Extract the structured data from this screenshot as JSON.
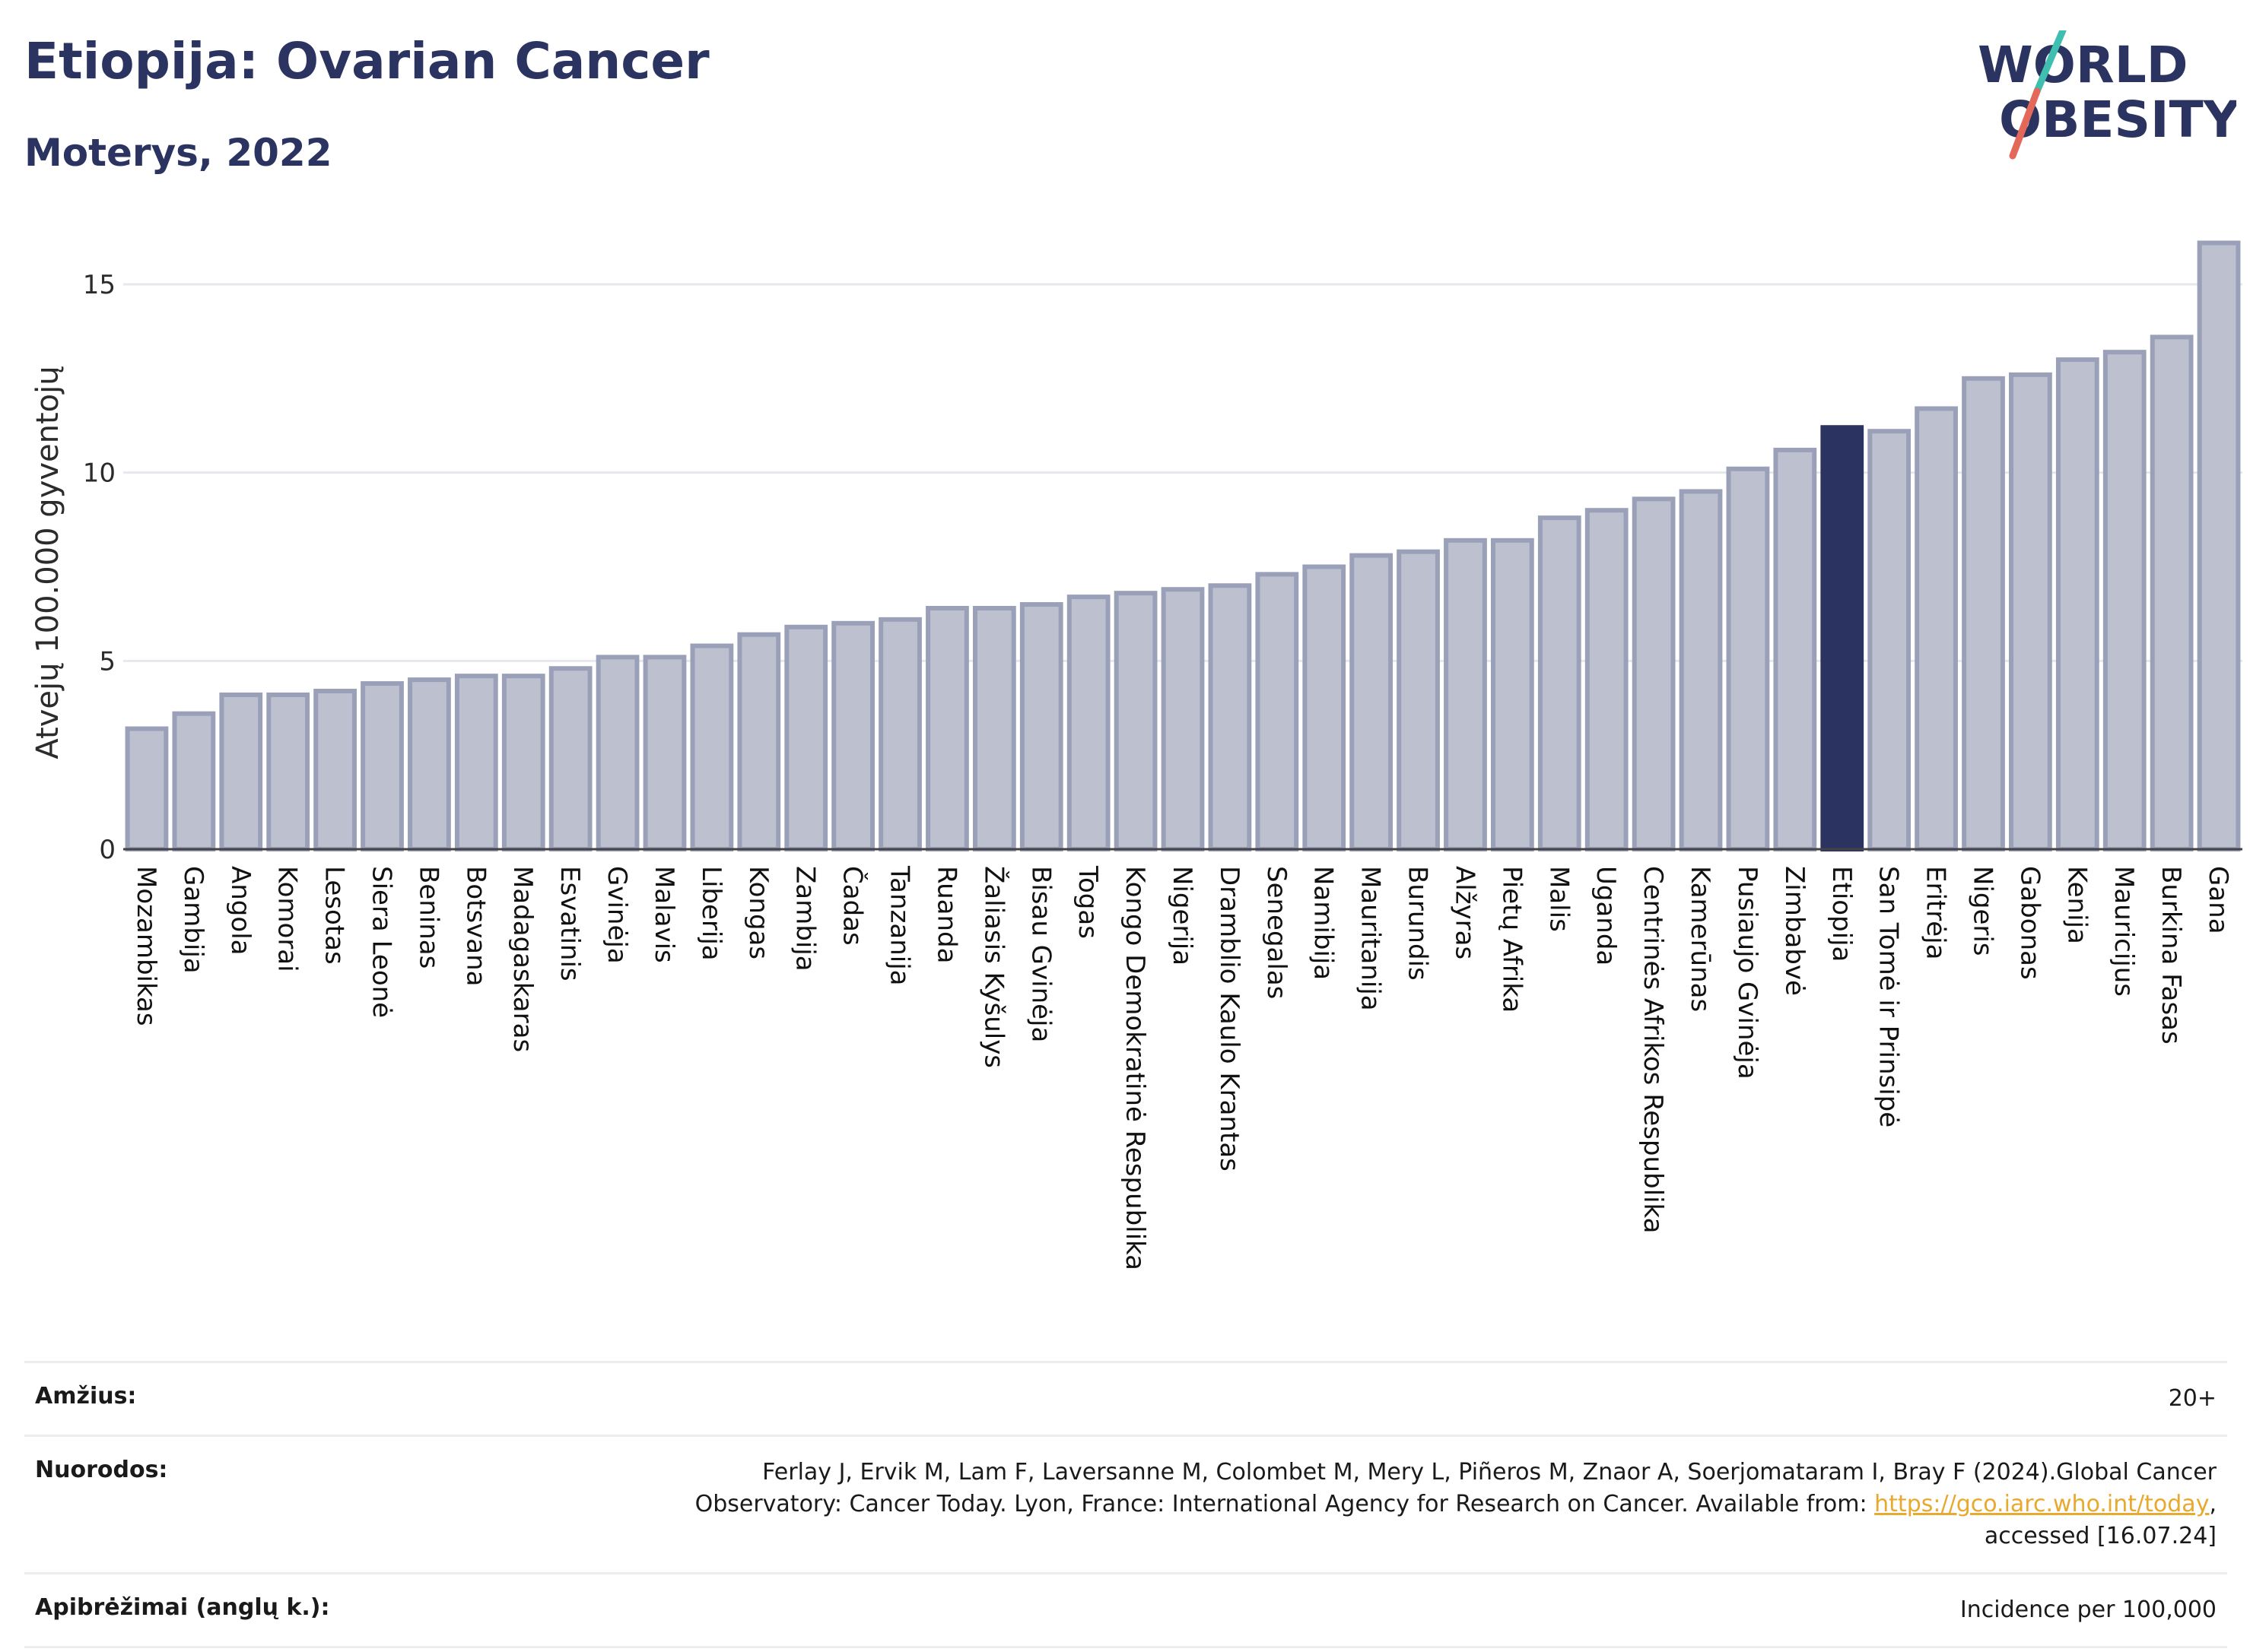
{
  "header": {
    "title": "Etiopija: Ovarian Cancer",
    "subtitle": "Moterys, 2022",
    "logo_text_line1": "WORLD",
    "logo_text_line2": "OBESITY"
  },
  "colors": {
    "bar": "#bcc0cf",
    "bar_stroke": "#9aa0b8",
    "highlight": "#2b3461",
    "text": "#2b3461",
    "link": "#e8a92e",
    "logo_teal": "#3fbfb0",
    "logo_red": "#e3685a"
  },
  "chart_data": {
    "type": "bar",
    "ylabel": "Atvejų 100.000 gyventojų",
    "ylim": [
      0,
      16.5
    ],
    "yticks": [
      0,
      5,
      10,
      15
    ],
    "grid": true,
    "highlight": "Etiopija",
    "categories": [
      "Mozambikas",
      "Gambija",
      "Angola",
      "Komorai",
      "Lesotas",
      "Siera Leonė",
      "Beninas",
      "Botsvana",
      "Madagaskaras",
      "Esvatinis",
      "Gvinėja",
      "Malavis",
      "Liberija",
      "Kongas",
      "Zambija",
      "Čadas",
      "Tanzanija",
      "Ruanda",
      "Žaliasis Kyšulys",
      "Bisau Gvinėja",
      "Togas",
      "Kongo Demokratinė Respublika",
      "Nigerija",
      "Dramblio Kaulo Krantas",
      "Senegalas",
      "Namibija",
      "Mauritanija",
      "Burundis",
      "Alžyras",
      "Pietų Afrika",
      "Malis",
      "Uganda",
      "Centrinės Afrikos Respublika",
      "Kamerūnas",
      "Pusiaujo Gvinėja",
      "Zimbabvė",
      "Etiopija",
      "San Tomė ir Prinsipė",
      "Eritrėja",
      "Nigeris",
      "Gabonas",
      "Kenija",
      "Mauricijus",
      "Burkina Fasas",
      "Gana"
    ],
    "values": [
      3.2,
      3.6,
      4.1,
      4.1,
      4.2,
      4.4,
      4.5,
      4.6,
      4.6,
      4.8,
      5.1,
      5.1,
      5.4,
      5.7,
      5.9,
      6.0,
      6.1,
      6.4,
      6.4,
      6.5,
      6.7,
      6.8,
      6.9,
      7.0,
      7.3,
      7.5,
      7.8,
      7.9,
      8.2,
      8.2,
      8.8,
      9.0,
      9.3,
      9.5,
      10.1,
      10.6,
      11.2,
      11.1,
      11.7,
      12.5,
      12.6,
      13.0,
      13.2,
      13.6,
      16.1
    ]
  },
  "info": {
    "age_label": "Amžius:",
    "age_value": "20+",
    "refs_label": "Nuorodos:",
    "refs_text_1": "Ferlay J, Ervik M, Lam F, Laversanne M, Colombet M, Mery L, Piñeros M, Znaor A, Soerjomataram I, Bray F (2024).Global Cancer",
    "refs_text_2": "Observatory: Cancer Today. Lyon, France: International Agency for Research on Cancer. Available from: ",
    "refs_link": "https://gco.iarc.who.int/today",
    "refs_text_3": ",",
    "refs_text_4": "accessed [16.07.24]",
    "def_label": "Apibrėžimai (anglų k.):",
    "def_value": "Incidence per 100,000"
  }
}
